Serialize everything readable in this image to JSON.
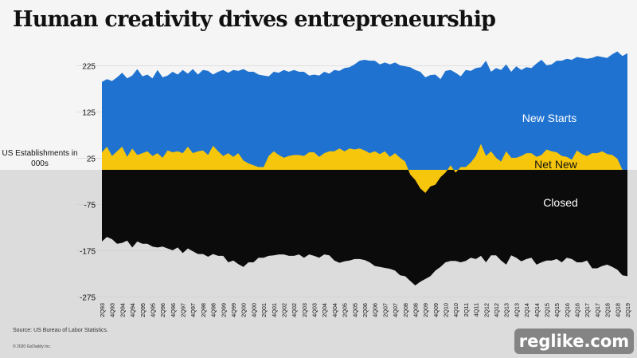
{
  "header": {
    "title": "Human creativity drives entrepreneurship"
  },
  "footer": {
    "source": "Source: US Bureau of Labor Statistics.",
    "copyright": "© 2020 GoDaddy Inc."
  },
  "watermark": "reglike.com",
  "colors": {
    "new_starts": "#1f72d0",
    "net_new": "#f5c60c",
    "closed": "#0b0b0b",
    "top_bg": "#f5f5f5",
    "bottom_bg": "#dcdcdc"
  },
  "chart_data": {
    "type": "area",
    "title": "",
    "xlabel": "",
    "ylabel": "US Establishments in 000s",
    "ylim": [
      -275,
      275
    ],
    "yticks": [
      225,
      125,
      25,
      -75,
      -175,
      -275
    ],
    "grid": "horizontal",
    "legend": "inline labels",
    "x_tick_labels": [
      "2Q93",
      "4Q93",
      "2Q94",
      "4Q94",
      "2Q95",
      "4Q95",
      "2Q96",
      "4Q96",
      "2Q97",
      "4Q97",
      "2Q98",
      "4Q98",
      "2Q99",
      "4Q99",
      "2Q00",
      "4Q00",
      "2Q01",
      "4Q01",
      "2Q02",
      "4Q02",
      "2Q03",
      "4Q03",
      "2Q04",
      "4Q04",
      "2Q05",
      "4Q05",
      "2Q06",
      "4Q06",
      "2Q07",
      "4Q07",
      "2Q08",
      "4Q08",
      "2Q09",
      "4Q09",
      "2Q10",
      "4Q10",
      "2Q11",
      "4Q11",
      "2Q12",
      "4Q12",
      "2Q13",
      "4Q13",
      "2Q14",
      "4Q14",
      "2Q15",
      "4Q15",
      "2Q16",
      "4Q16",
      "2Q17",
      "4Q17",
      "2Q18",
      "4Q18",
      "2Q19"
    ],
    "series": [
      {
        "name": "New Starts",
        "values": [
          190,
          196,
          192,
          200,
          210,
          198,
          204,
          218,
          202,
          206,
          198,
          216,
          200,
          204,
          212,
          206,
          216,
          208,
          218,
          206,
          216,
          214,
          206,
          212,
          216,
          210,
          216,
          214,
          218,
          212,
          212,
          206,
          204,
          202,
          212,
          210,
          216,
          212,
          216,
          212,
          212,
          204,
          206,
          204,
          212,
          208,
          216,
          214,
          220,
          222,
          228,
          236,
          238,
          236,
          236,
          228,
          232,
          228,
          232,
          226,
          224,
          222,
          216,
          212,
          200,
          205,
          206,
          196,
          214,
          216,
          210,
          202,
          216,
          214,
          220,
          222,
          236,
          212,
          220,
          216,
          228,
          212,
          224,
          216,
          222,
          220,
          230,
          238,
          226,
          228,
          236,
          236,
          240,
          238,
          244,
          242,
          240,
          242,
          246,
          244,
          242,
          250,
          256,
          246,
          252
        ]
      },
      {
        "name": "Net New",
        "values": [
          38,
          50,
          30,
          40,
          50,
          28,
          46,
          32,
          36,
          40,
          30,
          36,
          26,
          42,
          38,
          40,
          36,
          50,
          36,
          40,
          42,
          32,
          52,
          40,
          30,
          36,
          28,
          36,
          20,
          14,
          10,
          6,
          6,
          30,
          40,
          32,
          26,
          30,
          32,
          32,
          30,
          38,
          38,
          28,
          36,
          40,
          40,
          46,
          40,
          46,
          44,
          46,
          42,
          36,
          40,
          34,
          40,
          28,
          36,
          26,
          18,
          -10,
          -22,
          -40,
          -50,
          -36,
          -32,
          -16,
          -6,
          10,
          -6,
          6,
          6,
          16,
          30,
          56,
          30,
          40,
          26,
          18,
          40,
          26,
          26,
          30,
          36,
          36,
          28,
          32,
          44,
          40,
          38,
          30,
          28,
          22,
          42,
          34,
          30,
          36,
          36,
          40,
          34,
          32,
          24,
          0,
          0
        ]
      },
      {
        "name": "Closed",
        "values": [
          -155,
          -145,
          -150,
          -160,
          -158,
          -153,
          -168,
          -155,
          -160,
          -160,
          -166,
          -168,
          -166,
          -170,
          -174,
          -168,
          -180,
          -170,
          -176,
          -182,
          -182,
          -188,
          -182,
          -186,
          -186,
          -200,
          -196,
          -204,
          -210,
          -200,
          -200,
          -190,
          -190,
          -186,
          -185,
          -183,
          -183,
          -186,
          -186,
          -183,
          -190,
          -183,
          -186,
          -190,
          -183,
          -185,
          -196,
          -201,
          -198,
          -196,
          -193,
          -193,
          -195,
          -200,
          -208,
          -210,
          -212,
          -214,
          -218,
          -228,
          -230,
          -240,
          -250,
          -242,
          -236,
          -230,
          -218,
          -210,
          -200,
          -197,
          -197,
          -200,
          -197,
          -190,
          -193,
          -186,
          -200,
          -185,
          -185,
          -196,
          -205,
          -185,
          -190,
          -198,
          -193,
          -190,
          -205,
          -200,
          -196,
          -196,
          -193,
          -200,
          -190,
          -193,
          -200,
          -200,
          -196,
          -213,
          -213,
          -208,
          -205,
          -210,
          -216,
          -228,
          -230
        ]
      }
    ],
    "labels": {
      "new_starts": "New Starts",
      "net_new": "Net New",
      "closed": "Closed"
    }
  }
}
